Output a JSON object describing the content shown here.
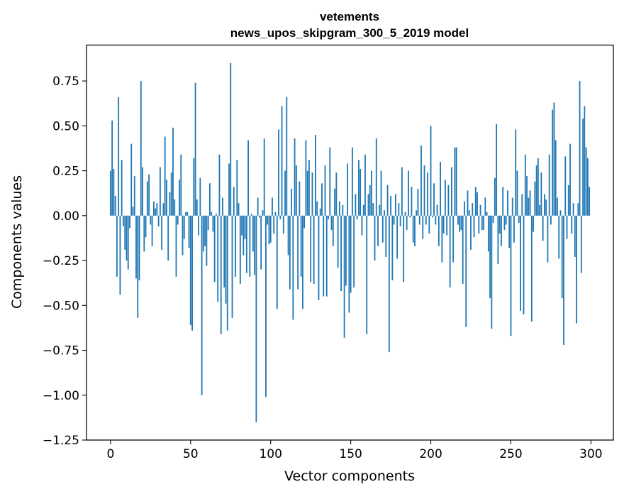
{
  "chart_data": {
    "type": "bar",
    "title": "vetements",
    "subtitle": "news_upos_skipgram_300_5_2019 model",
    "xlabel": "Vector components",
    "ylabel": "Components values",
    "xlim": [
      -15,
      314
    ],
    "ylim": [
      -1.25,
      0.95
    ],
    "xticks": [
      0,
      50,
      100,
      150,
      200,
      250,
      300
    ],
    "yticks": [
      -1.25,
      -1.0,
      -0.75,
      -0.5,
      -0.25,
      0.0,
      0.25,
      0.5,
      0.75
    ],
    "ytick_labels": [
      "−1.25",
      "−1.00",
      "−0.75",
      "−0.50",
      "−0.25",
      "0.00",
      "0.25",
      "0.50",
      "0.75"
    ],
    "grid": false,
    "bar_color": "#1f77b4",
    "values": [
      0.25,
      0.53,
      0.26,
      0.11,
      -0.34,
      0.66,
      -0.44,
      0.31,
      -0.06,
      -0.19,
      -0.25,
      -0.3,
      -0.07,
      0.4,
      0.05,
      0.22,
      -0.35,
      -0.57,
      -0.36,
      0.75,
      0.27,
      -0.2,
      -0.12,
      0.19,
      0.23,
      -0.05,
      -0.17,
      0.08,
      0.04,
      0.07,
      -0.06,
      0.27,
      -0.19,
      0.07,
      0.44,
      0.2,
      -0.25,
      0.13,
      0.24,
      0.49,
      0.09,
      -0.34,
      -0.05,
      0.2,
      0.34,
      -0.22,
      -0.13,
      0.02,
      0.02,
      -0.18,
      -0.61,
      -0.64,
      0.32,
      0.74,
      0.09,
      -0.11,
      0.21,
      -1.0,
      -0.2,
      -0.17,
      -0.28,
      -0.08,
      0.18,
      0.02,
      -0.09,
      -0.37,
      0.01,
      -0.48,
      0.34,
      -0.66,
      0.1,
      -0.4,
      -0.49,
      -0.64,
      0.29,
      0.85,
      -0.57,
      0.16,
      -0.34,
      0.31,
      0.07,
      -0.38,
      -0.11,
      -0.22,
      -0.13,
      -0.32,
      0.42,
      -0.34,
      0.01,
      -0.2,
      -0.33,
      -1.15,
      0.1,
      -0.01,
      -0.3,
      0.03,
      0.43,
      -1.01,
      -0.05,
      -0.16,
      -0.15,
      0.1,
      -0.1,
      0.02,
      -0.52,
      0.48,
      -0.02,
      0.61,
      -0.1,
      0.25,
      0.66,
      -0.22,
      -0.41,
      0.15,
      -0.58,
      0.43,
      0.28,
      -0.41,
      0.19,
      -0.34,
      -0.52,
      -0.07,
      0.42,
      0.25,
      0.31,
      -0.37,
      0.24,
      -0.38,
      0.45,
      0.08,
      -0.47,
      0.04,
      0.18,
      -0.45,
      0.28,
      -0.45,
      -0.02,
      0.38,
      -0.08,
      -0.17,
      0.15,
      0.24,
      -0.29,
      0.08,
      -0.42,
      0.06,
      -0.68,
      -0.39,
      0.29,
      -0.54,
      -0.43,
      0.38,
      -0.4,
      0.12,
      -0.02,
      0.31,
      0.26,
      -0.11,
      0.06,
      0.34,
      -0.66,
      0.12,
      0.17,
      0.25,
      0.07,
      -0.25,
      0.43,
      -0.17,
      0.06,
      0.25,
      -0.15,
      0.03,
      -0.23,
      0.17,
      -0.76,
      0.11,
      -0.36,
      -0.05,
      0.12,
      -0.24,
      0.07,
      -0.06,
      0.27,
      -0.37,
      0.02,
      -0.08,
      0.25,
      -0.01,
      0.16,
      -0.15,
      -0.17,
      0.03,
      0.15,
      -0.05,
      0.39,
      -0.13,
      0.28,
      -0.05,
      0.24,
      -0.1,
      0.5,
      -0.01,
      0.18,
      -0.05,
      0.06,
      -0.17,
      0.3,
      -0.26,
      -0.1,
      0.2,
      -0.11,
      0.17,
      -0.4,
      0.27,
      -0.26,
      0.38,
      0.38,
      -0.05,
      -0.09,
      -0.08,
      -0.38,
      0.08,
      -0.62,
      0.14,
      0.03,
      -0.19,
      0.07,
      -0.12,
      0.16,
      0.13,
      -0.1,
      0.06,
      -0.08,
      -0.08,
      0.1,
      0.02,
      -0.2,
      -0.46,
      -0.63,
      -0.04,
      0.21,
      0.51,
      -0.27,
      -0.1,
      -0.17,
      0.16,
      -0.08,
      -0.05,
      0.14,
      -0.18,
      -0.67,
      0.1,
      -0.15,
      0.48,
      0.25,
      -0.04,
      -0.53,
      0.12,
      -0.55,
      0.34,
      0.22,
      0.1,
      0.14,
      -0.59,
      -0.09,
      0.19,
      0.28,
      0.32,
      0.06,
      0.24,
      -0.14,
      0.12,
      0.09,
      -0.26,
      0.34,
      -0.05,
      0.59,
      0.63,
      0.42,
      0.1,
      -0.24,
      0.03,
      -0.46,
      -0.72,
      0.33,
      -0.13,
      0.17,
      0.4,
      -0.1,
      0.07,
      -0.23,
      -0.6,
      0.07,
      0.75,
      -0.32,
      0.54,
      0.61,
      0.38,
      0.32,
      0.16
    ]
  }
}
